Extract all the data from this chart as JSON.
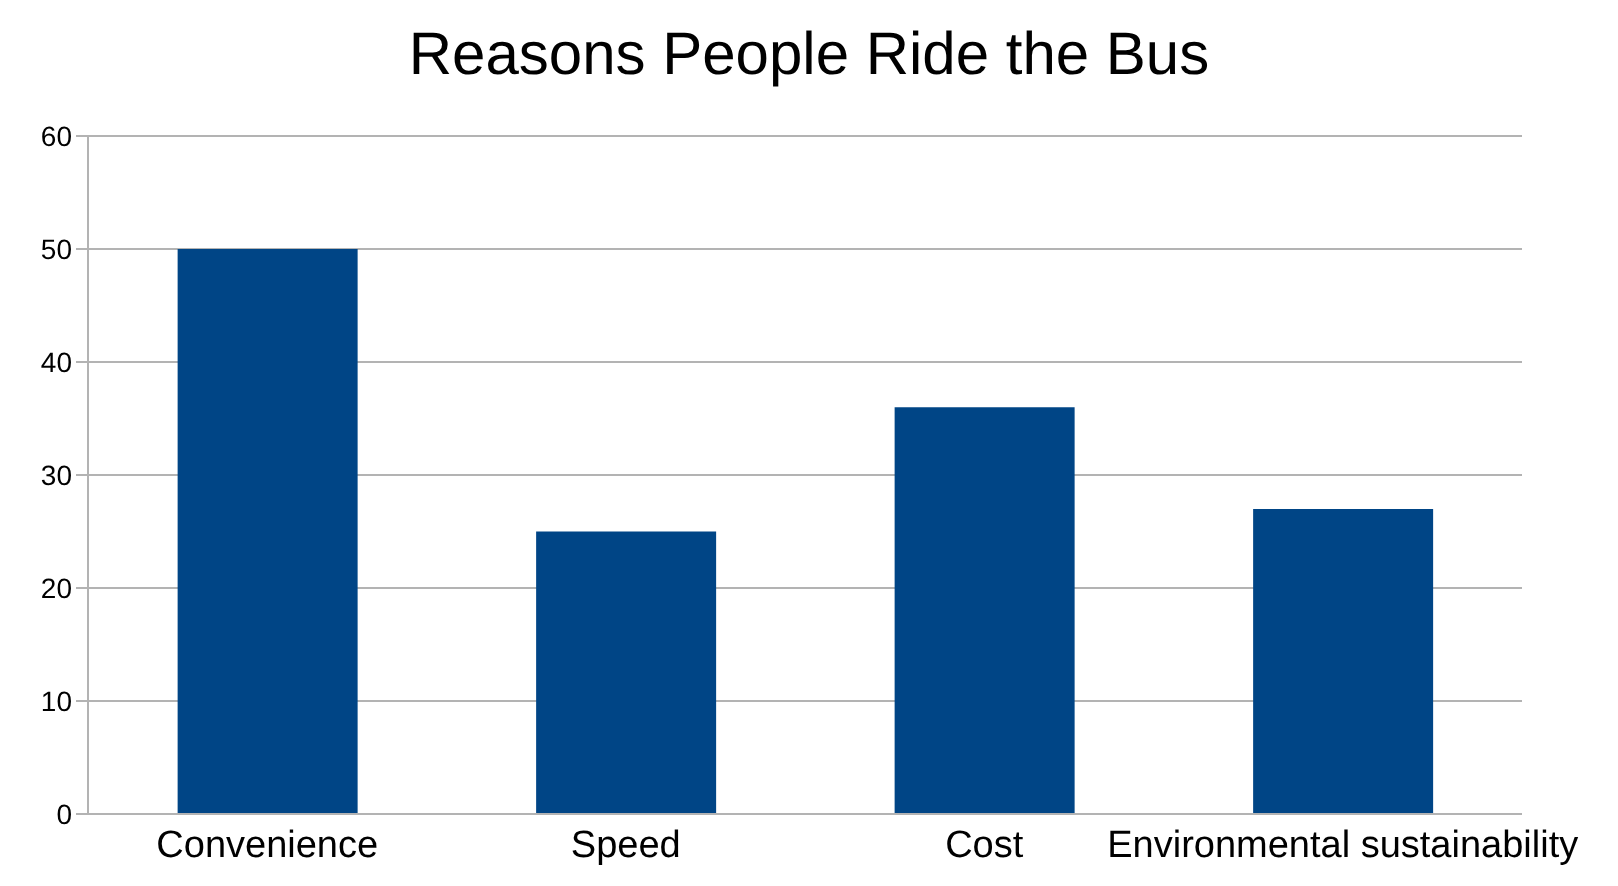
{
  "chart_data": {
    "type": "bar",
    "title": "Reasons People Ride the Bus",
    "categories": [
      "Convenience",
      "Speed",
      "Cost",
      "Environmental sustainability"
    ],
    "values": [
      50,
      25,
      36,
      27
    ],
    "color": "#004586",
    "ylim": [
      0,
      60
    ],
    "yticks": [
      0,
      10,
      20,
      30,
      40,
      50,
      60
    ],
    "grid": "y"
  }
}
